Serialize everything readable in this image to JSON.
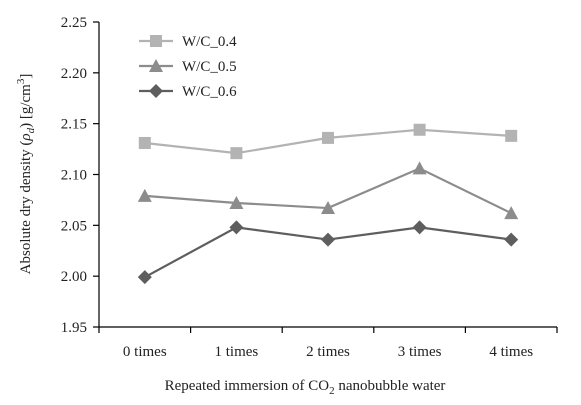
{
  "chart_data": {
    "type": "line",
    "categories": [
      "0 times",
      "1 times",
      "2 times",
      "3 times",
      "4 times"
    ],
    "xlabel": {
      "prefix": "Repeated immersion of CO",
      "sub": "2",
      "suffix": " nanobubble water"
    },
    "ylabel": {
      "prefix": "Absolute dry density (",
      "rho": "ρ",
      "rho_sub": "d",
      "mid": ") [g/cm",
      "sup": "3",
      "suffix": "]"
    },
    "ylim": [
      1.95,
      2.25
    ],
    "yticks": [
      1.95,
      2.0,
      2.05,
      2.1,
      2.15,
      2.2,
      2.25
    ],
    "ytick_labels": [
      "1.95",
      "2.00",
      "2.05",
      "2.10",
      "2.15",
      "2.20",
      "2.25"
    ],
    "grid": false,
    "legend_position": "top-left",
    "series": [
      {
        "name": "W/C_0.4",
        "marker": "square",
        "color": "#b3b3b3",
        "values": [
          2.131,
          2.121,
          2.136,
          2.144,
          2.138
        ]
      },
      {
        "name": "W/C_0.5",
        "marker": "triangle",
        "color": "#8c8c8c",
        "values": [
          2.079,
          2.072,
          2.067,
          2.106,
          2.062
        ]
      },
      {
        "name": "W/C_0.6",
        "marker": "diamond",
        "color": "#5e5e5e",
        "values": [
          1.999,
          2.048,
          2.036,
          2.048,
          2.036
        ]
      }
    ]
  }
}
